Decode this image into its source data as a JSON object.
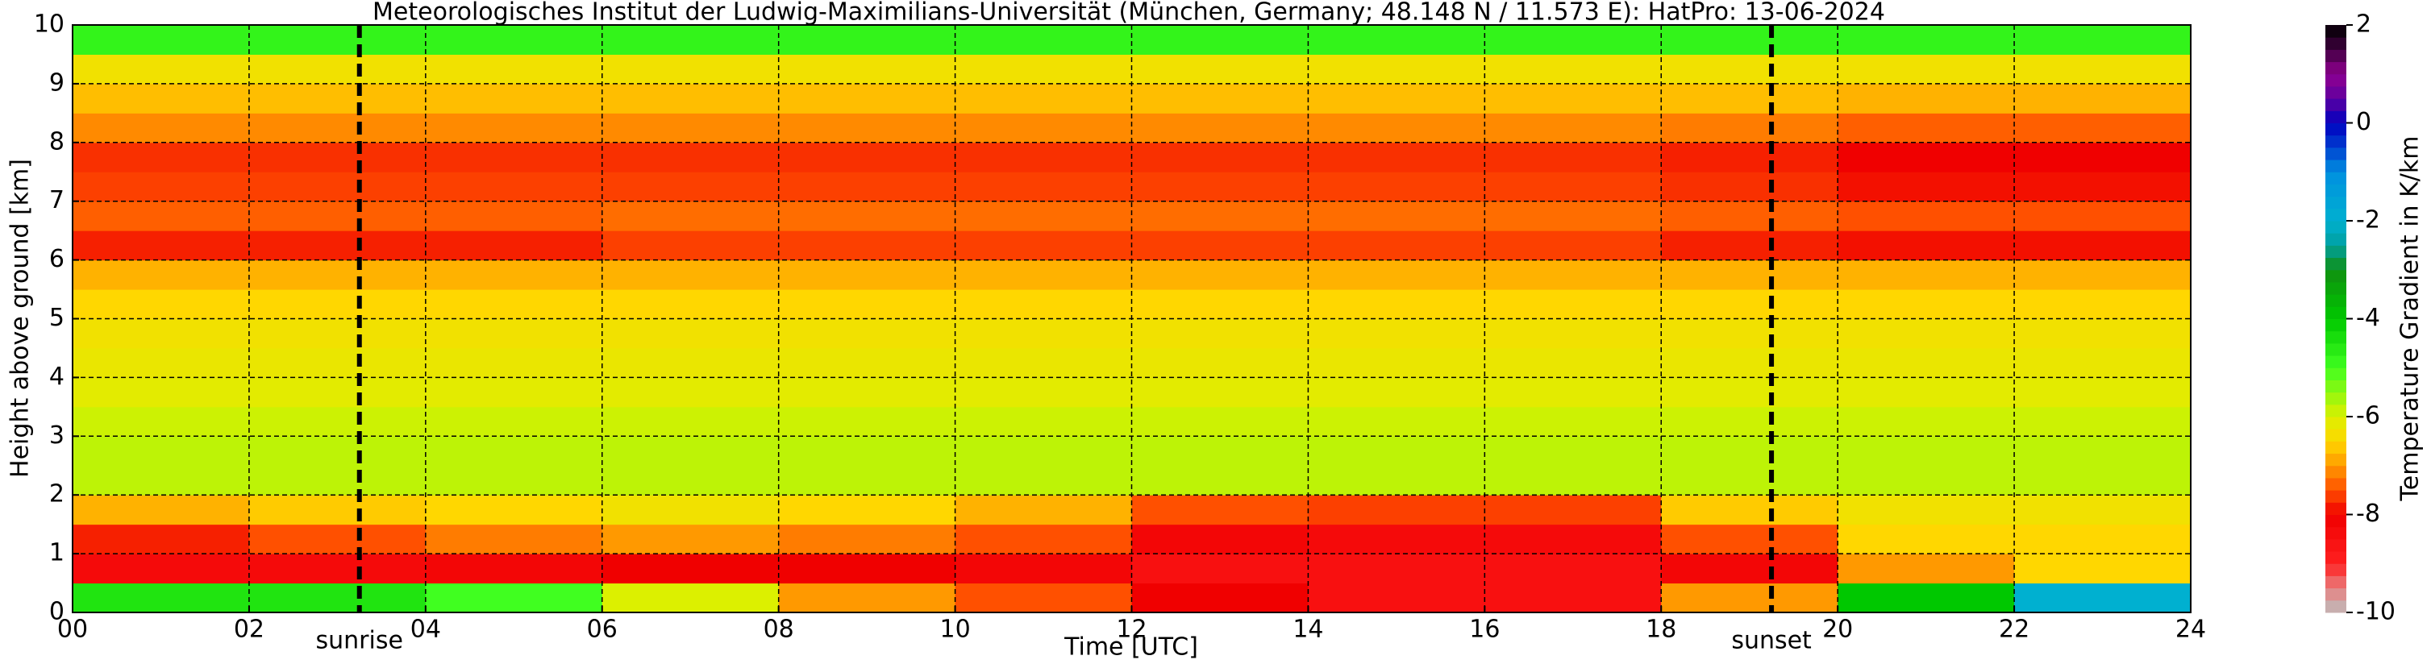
{
  "chart_data": {
    "type": "heatmap",
    "title": "Meteorologisches Institut der Ludwig-Maximilians-Universität (München, Germany; 48.148 N / 11.573 E):    HatPro: 13-06-2024",
    "xlabel": "Time [UTC]",
    "ylabel": "Height above ground [km]",
    "colorbar_label": "Temperature Gradient in K/km",
    "x": [
      0,
      2,
      4,
      6,
      8,
      10,
      12,
      14,
      16,
      18,
      20,
      22,
      24
    ],
    "y": [
      0,
      0.5,
      1,
      1.5,
      2,
      2.5,
      3,
      3.5,
      4,
      4.5,
      5,
      5.5,
      6,
      6.5,
      7,
      7.5,
      8,
      8.5,
      9,
      9.5,
      10
    ],
    "z": [
      [
        -4.5,
        -4.5,
        -5,
        -6,
        -7,
        -7.5,
        -8,
        -8.5,
        -8.5,
        -7,
        -4,
        -2
      ],
      [
        -8.3,
        -8.3,
        -8.2,
        -8,
        -8,
        -8.2,
        -8.5,
        -8.5,
        -8.5,
        -8.2,
        -7,
        -6.5
      ],
      [
        -7.8,
        -7.5,
        -7.2,
        -7,
        -7.2,
        -7.5,
        -8.2,
        -8.3,
        -8.3,
        -7.5,
        -6.5,
        -6.5
      ],
      [
        -6.8,
        -6.6,
        -6.5,
        -6.3,
        -6.5,
        -6.8,
        -7.5,
        -7.6,
        -7.6,
        -6.6,
        -6.3,
        -6.3
      ],
      [
        -5.8,
        -5.8,
        -5.8,
        -5.8,
        -5.8,
        -5.8,
        -5.8,
        -5.8,
        -5.8,
        -5.8,
        -5.8,
        -5.8
      ],
      [
        -5.8,
        -5.8,
        -5.8,
        -5.8,
        -5.8,
        -5.8,
        -5.8,
        -5.8,
        -5.8,
        -5.8,
        -5.8,
        -5.8
      ],
      [
        -5.9,
        -5.9,
        -5.9,
        -5.9,
        -5.9,
        -5.9,
        -5.9,
        -5.9,
        -5.9,
        -5.9,
        -5.9,
        -5.9
      ],
      [
        -6.1,
        -6.1,
        -6.1,
        -6.1,
        -6.1,
        -6.1,
        -6.1,
        -6.1,
        -6.1,
        -6.1,
        -6.1,
        -6.1
      ],
      [
        -6.2,
        -6.2,
        -6.2,
        -6.2,
        -6.2,
        -6.2,
        -6.2,
        -6.2,
        -6.2,
        -6.2,
        -6.2,
        -6.2
      ],
      [
        -6.3,
        -6.3,
        -6.3,
        -6.3,
        -6.3,
        -6.3,
        -6.3,
        -6.3,
        -6.3,
        -6.3,
        -6.3,
        -6.3
      ],
      [
        -6.5,
        -6.5,
        -6.5,
        -6.5,
        -6.5,
        -6.5,
        -6.5,
        -6.5,
        -6.5,
        -6.5,
        -6.5,
        -6.5
      ],
      [
        -6.8,
        -6.8,
        -6.8,
        -6.8,
        -6.8,
        -6.8,
        -6.8,
        -6.8,
        -6.8,
        -6.8,
        -6.8,
        -6.8
      ],
      [
        -7.8,
        -7.8,
        -7.8,
        -7.6,
        -7.6,
        -7.6,
        -7.6,
        -7.6,
        -7.6,
        -7.8,
        -7.9,
        -7.9
      ],
      [
        -7.4,
        -7.4,
        -7.4,
        -7.3,
        -7.3,
        -7.3,
        -7.3,
        -7.3,
        -7.3,
        -7.4,
        -7.5,
        -7.5
      ],
      [
        -7.6,
        -7.6,
        -7.6,
        -7.6,
        -7.6,
        -7.6,
        -7.6,
        -7.6,
        -7.6,
        -7.7,
        -7.9,
        -7.9
      ],
      [
        -7.7,
        -7.7,
        -7.7,
        -7.7,
        -7.7,
        -7.7,
        -7.7,
        -7.7,
        -7.7,
        -7.8,
        -8,
        -8
      ],
      [
        -7.1,
        -7.1,
        -7.1,
        -7.1,
        -7.1,
        -7.1,
        -7.1,
        -7.1,
        -7.1,
        -7.2,
        -7.4,
        -7.4
      ],
      [
        -6.7,
        -6.7,
        -6.7,
        -6.7,
        -6.7,
        -6.7,
        -6.7,
        -6.7,
        -6.7,
        -6.7,
        -6.8,
        -6.8
      ],
      [
        -6.3,
        -6.3,
        -6.3,
        -6.3,
        -6.3,
        -6.3,
        -6.3,
        -6.3,
        -6.3,
        -6.3,
        -6.3,
        -6.3
      ],
      [
        -4.8,
        -4.8,
        -4.8,
        -4.8,
        -4.8,
        -4.8,
        -4.8,
        -4.8,
        -4.8,
        -4.8,
        -4.8,
        -4.8
      ]
    ],
    "xlim": [
      0,
      24
    ],
    "xticks": [
      {
        "value": 0,
        "label": "00"
      },
      {
        "value": 2,
        "label": "02"
      },
      {
        "value": 4,
        "label": "04"
      },
      {
        "value": 6,
        "label": "06"
      },
      {
        "value": 8,
        "label": "08"
      },
      10,
      12,
      14,
      16,
      18,
      20,
      22,
      24
    ],
    "ylim": [
      0,
      10
    ],
    "yticks": [
      0,
      1,
      2,
      3,
      4,
      5,
      6,
      7,
      8,
      9,
      10
    ],
    "zlim": [
      -10,
      2
    ],
    "zticks": [
      -10,
      -8,
      -6,
      -4,
      -2,
      0,
      2
    ],
    "grid": true,
    "colormap": [
      [
        -10,
        "#bdbdbd"
      ],
      [
        -9.5,
        "#e88080"
      ],
      [
        -9,
        "#ff2020"
      ],
      [
        -8,
        "#f00000"
      ],
      [
        -7.5,
        "#ff5000"
      ],
      [
        -7,
        "#ff9900"
      ],
      [
        -6.5,
        "#ffd700"
      ],
      [
        -6,
        "#dcf000"
      ],
      [
        -5,
        "#40ff20"
      ],
      [
        -4,
        "#00c800"
      ],
      [
        -3,
        "#109010"
      ],
      [
        -2.5,
        "#00a0a0"
      ],
      [
        -2,
        "#00b0d0"
      ],
      [
        -1,
        "#0090e0"
      ],
      [
        -0.5,
        "#0040d0"
      ],
      [
        0,
        "#0000c0"
      ],
      [
        0.5,
        "#6000a0"
      ],
      [
        1,
        "#900090"
      ],
      [
        1.5,
        "#400040"
      ],
      [
        2,
        "#000000"
      ]
    ],
    "vlines": [
      {
        "x": 3.25,
        "label": "sunrise"
      },
      {
        "x": 19.25,
        "label": "sunset"
      }
    ]
  }
}
